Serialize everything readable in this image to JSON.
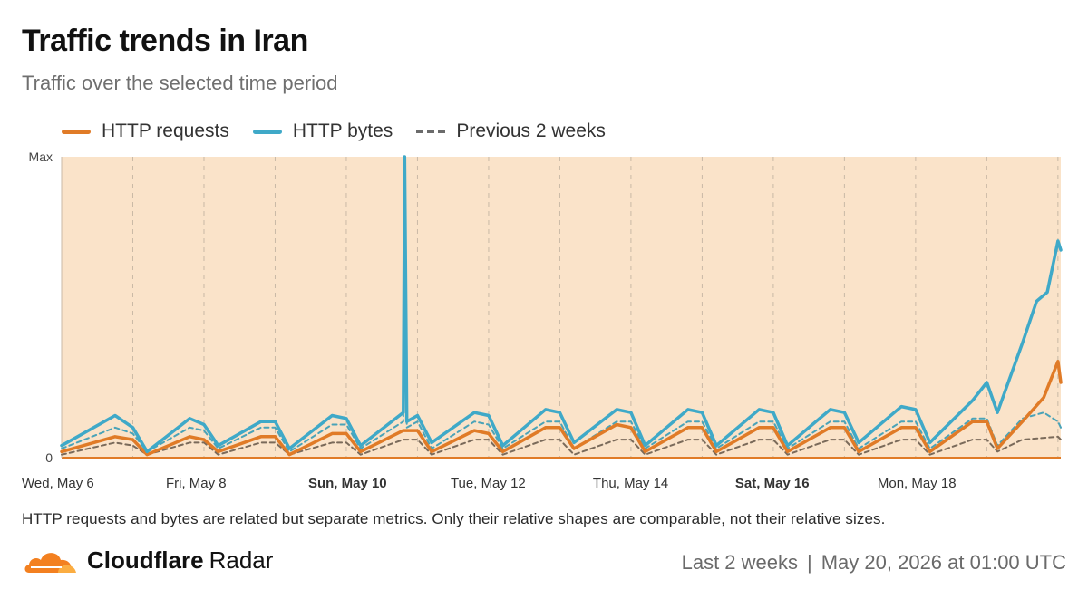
{
  "header": {
    "title": "Traffic trends in Iran",
    "subtitle": "Traffic over the selected time period"
  },
  "legend": [
    {
      "label": "HTTP requests",
      "color": "#e07b27",
      "style": "solid"
    },
    {
      "label": "HTTP bytes",
      "color": "#3fa9c8",
      "style": "solid"
    },
    {
      "label": "Previous 2 weeks",
      "color": "#6b6b6b",
      "style": "dashed"
    }
  ],
  "chart_data": {
    "type": "line",
    "y_axis": {
      "max_label": "Max",
      "min_label": "0",
      "range": [
        0,
        1
      ]
    },
    "x_axis": {
      "start": "Wed, May 6",
      "end": "Wed, May 20 01:00",
      "tick_labels": [
        {
          "label": "Wed, May 6",
          "day": 0,
          "bold": false
        },
        {
          "label": "Fri, May 8",
          "day": 2,
          "bold": false
        },
        {
          "label": "Sun, May 10",
          "day": 4,
          "bold": true
        },
        {
          "label": "Tue, May 12",
          "day": 6,
          "bold": false
        },
        {
          "label": "Thu, May 14",
          "day": 8,
          "bold": false
        },
        {
          "label": "Sat, May 16",
          "day": 10,
          "bold": true
        },
        {
          "label": "Mon, May 18",
          "day": 12,
          "bold": false
        }
      ],
      "gridline_hours": 24
    },
    "background_color": "#fae3c9",
    "grid": true,
    "legend_position": "top-left",
    "series": [
      {
        "name": "HTTP bytes",
        "color": "#3fa9c8",
        "points": [
          [
            0,
            0.04
          ],
          [
            0.75,
            0.14
          ],
          [
            1,
            0.1
          ],
          [
            1.2,
            0.02
          ],
          [
            1.8,
            0.13
          ],
          [
            2,
            0.11
          ],
          [
            2.2,
            0.04
          ],
          [
            2.8,
            0.12
          ],
          [
            3,
            0.12
          ],
          [
            3.2,
            0.03
          ],
          [
            3.8,
            0.14
          ],
          [
            4,
            0.13
          ],
          [
            4.2,
            0.04
          ],
          [
            4.8,
            0.15
          ],
          [
            4.82,
            1.0
          ],
          [
            4.85,
            0.12
          ],
          [
            5,
            0.14
          ],
          [
            5.2,
            0.05
          ],
          [
            5.8,
            0.15
          ],
          [
            6,
            0.14
          ],
          [
            6.2,
            0.04
          ],
          [
            6.8,
            0.16
          ],
          [
            7,
            0.15
          ],
          [
            7.2,
            0.05
          ],
          [
            7.8,
            0.16
          ],
          [
            8,
            0.15
          ],
          [
            8.2,
            0.04
          ],
          [
            8.8,
            0.16
          ],
          [
            9,
            0.15
          ],
          [
            9.2,
            0.04
          ],
          [
            9.8,
            0.16
          ],
          [
            10,
            0.15
          ],
          [
            10.2,
            0.04
          ],
          [
            10.8,
            0.16
          ],
          [
            11,
            0.15
          ],
          [
            11.2,
            0.05
          ],
          [
            11.8,
            0.17
          ],
          [
            12,
            0.16
          ],
          [
            12.2,
            0.05
          ],
          [
            12.8,
            0.19
          ],
          [
            13,
            0.25
          ],
          [
            13.15,
            0.15
          ],
          [
            13.5,
            0.38
          ],
          [
            13.7,
            0.52
          ],
          [
            13.85,
            0.55
          ],
          [
            14,
            0.72
          ],
          [
            14.04,
            0.69
          ]
        ]
      },
      {
        "name": "HTTP requests",
        "color": "#e07b27",
        "points": [
          [
            0,
            0.02
          ],
          [
            0.75,
            0.07
          ],
          [
            1,
            0.06
          ],
          [
            1.2,
            0.01
          ],
          [
            1.8,
            0.07
          ],
          [
            2,
            0.06
          ],
          [
            2.2,
            0.02
          ],
          [
            2.8,
            0.07
          ],
          [
            3,
            0.07
          ],
          [
            3.2,
            0.01
          ],
          [
            3.8,
            0.08
          ],
          [
            4,
            0.08
          ],
          [
            4.2,
            0.02
          ],
          [
            4.8,
            0.09
          ],
          [
            5,
            0.09
          ],
          [
            5.2,
            0.02
          ],
          [
            5.8,
            0.09
          ],
          [
            6,
            0.08
          ],
          [
            6.2,
            0.02
          ],
          [
            6.8,
            0.1
          ],
          [
            7,
            0.1
          ],
          [
            7.2,
            0.03
          ],
          [
            7.8,
            0.11
          ],
          [
            8,
            0.1
          ],
          [
            8.2,
            0.02
          ],
          [
            8.8,
            0.1
          ],
          [
            9,
            0.1
          ],
          [
            9.2,
            0.02
          ],
          [
            9.8,
            0.1
          ],
          [
            10,
            0.1
          ],
          [
            10.2,
            0.02
          ],
          [
            10.8,
            0.1
          ],
          [
            11,
            0.1
          ],
          [
            11.2,
            0.02
          ],
          [
            11.8,
            0.1
          ],
          [
            12,
            0.1
          ],
          [
            12.2,
            0.02
          ],
          [
            12.8,
            0.12
          ],
          [
            13,
            0.12
          ],
          [
            13.15,
            0.03
          ],
          [
            13.5,
            0.12
          ],
          [
            13.8,
            0.2
          ],
          [
            14,
            0.32
          ],
          [
            14.04,
            0.25
          ]
        ]
      },
      {
        "name": "HTTP bytes (previous 2 weeks)",
        "color": "#4aa3b8",
        "dashed": true,
        "points": [
          [
            0,
            0.03
          ],
          [
            0.75,
            0.1
          ],
          [
            1,
            0.08
          ],
          [
            1.2,
            0.02
          ],
          [
            1.8,
            0.1
          ],
          [
            2,
            0.09
          ],
          [
            2.2,
            0.03
          ],
          [
            2.8,
            0.1
          ],
          [
            3,
            0.1
          ],
          [
            3.2,
            0.02
          ],
          [
            3.8,
            0.11
          ],
          [
            4,
            0.11
          ],
          [
            4.2,
            0.03
          ],
          [
            4.8,
            0.12
          ],
          [
            4.82,
            1.0
          ],
          [
            4.85,
            0.1
          ],
          [
            5,
            0.12
          ],
          [
            5.2,
            0.03
          ],
          [
            5.8,
            0.12
          ],
          [
            6,
            0.11
          ],
          [
            6.2,
            0.03
          ],
          [
            6.8,
            0.12
          ],
          [
            7,
            0.12
          ],
          [
            7.2,
            0.03
          ],
          [
            7.8,
            0.12
          ],
          [
            8,
            0.12
          ],
          [
            8.2,
            0.03
          ],
          [
            8.8,
            0.12
          ],
          [
            9,
            0.12
          ],
          [
            9.2,
            0.03
          ],
          [
            9.8,
            0.12
          ],
          [
            10,
            0.12
          ],
          [
            10.2,
            0.03
          ],
          [
            10.8,
            0.12
          ],
          [
            11,
            0.12
          ],
          [
            11.2,
            0.03
          ],
          [
            11.8,
            0.12
          ],
          [
            12,
            0.12
          ],
          [
            12.2,
            0.03
          ],
          [
            12.8,
            0.13
          ],
          [
            13,
            0.13
          ],
          [
            13.15,
            0.04
          ],
          [
            13.5,
            0.13
          ],
          [
            13.8,
            0.15
          ],
          [
            14,
            0.12
          ],
          [
            14.04,
            0.1
          ]
        ]
      },
      {
        "name": "HTTP requests (previous 2 weeks)",
        "color": "#7a6a5a",
        "dashed": true,
        "points": [
          [
            0,
            0.01
          ],
          [
            0.75,
            0.05
          ],
          [
            1,
            0.04
          ],
          [
            1.2,
            0.01
          ],
          [
            1.8,
            0.05
          ],
          [
            2,
            0.05
          ],
          [
            2.2,
            0.01
          ],
          [
            2.8,
            0.05
          ],
          [
            3,
            0.05
          ],
          [
            3.2,
            0.01
          ],
          [
            3.8,
            0.05
          ],
          [
            4,
            0.05
          ],
          [
            4.2,
            0.01
          ],
          [
            4.8,
            0.06
          ],
          [
            5,
            0.06
          ],
          [
            5.2,
            0.01
          ],
          [
            5.8,
            0.06
          ],
          [
            6,
            0.06
          ],
          [
            6.2,
            0.01
          ],
          [
            6.8,
            0.06
          ],
          [
            7,
            0.06
          ],
          [
            7.2,
            0.01
          ],
          [
            7.8,
            0.06
          ],
          [
            8,
            0.06
          ],
          [
            8.2,
            0.01
          ],
          [
            8.8,
            0.06
          ],
          [
            9,
            0.06
          ],
          [
            9.2,
            0.01
          ],
          [
            9.8,
            0.06
          ],
          [
            10,
            0.06
          ],
          [
            10.2,
            0.01
          ],
          [
            10.8,
            0.06
          ],
          [
            11,
            0.06
          ],
          [
            11.2,
            0.01
          ],
          [
            11.8,
            0.06
          ],
          [
            12,
            0.06
          ],
          [
            12.2,
            0.01
          ],
          [
            12.8,
            0.06
          ],
          [
            13,
            0.06
          ],
          [
            13.15,
            0.02
          ],
          [
            13.5,
            0.06
          ],
          [
            14,
            0.07
          ],
          [
            14.04,
            0.06
          ]
        ]
      }
    ]
  },
  "note": "HTTP requests and bytes are related but separate metrics. Only their relative shapes are comparable, not their relative sizes.",
  "footer": {
    "brand_name": "Cloudflare",
    "brand_suffix": "Radar",
    "brand_color": "#f38020",
    "period": "Last 2 weeks",
    "separator": "|",
    "timestamp": "May 20, 2026 at 01:00 UTC"
  }
}
